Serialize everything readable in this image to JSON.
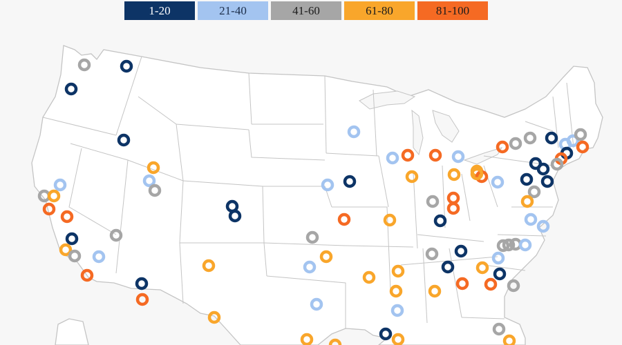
{
  "legend": [
    {
      "label": "1-20",
      "color": "#0d3466"
    },
    {
      "label": "21-40",
      "color": "#a3c4f0"
    },
    {
      "label": "41-60",
      "color": "#a6a6a6"
    },
    {
      "label": "61-80",
      "color": "#f9a62b"
    },
    {
      "label": "81-100",
      "color": "#f56a23"
    }
  ],
  "icons": {
    "marker": "circle-ring-marker"
  }
}
